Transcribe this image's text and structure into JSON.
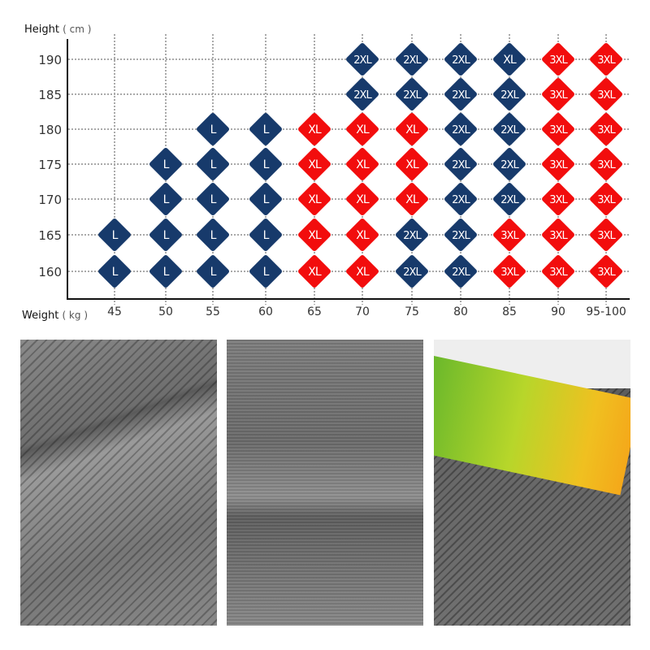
{
  "chart_data": {
    "type": "table",
    "ylabel": "Height",
    "ylabel_unit": "( cm )",
    "xlabel": "Weight",
    "xlabel_unit": "( kg )",
    "x_categories": [
      "45",
      "50",
      "55",
      "60",
      "65",
      "70",
      "75",
      "80",
      "85",
      "90",
      "95-100"
    ],
    "y_categories": [
      "190",
      "185",
      "180",
      "175",
      "170",
      "165",
      "160"
    ],
    "grid": true,
    "size_colors": {
      "L": "#173a6b",
      "XL": "#173a6b",
      "2XL": "#173a6b",
      "3XL": "#f20d0d"
    },
    "red_xl_color": "#f20d0d",
    "rows": [
      {
        "height": "190",
        "sizes": [
          null,
          null,
          null,
          null,
          null,
          "2XL",
          "2XL",
          "2XL",
          "XL",
          "3XL",
          "3XL"
        ],
        "colors": [
          null,
          null,
          null,
          null,
          null,
          "navy",
          "navy",
          "navy",
          "navy",
          "red",
          "red"
        ]
      },
      {
        "height": "185",
        "sizes": [
          null,
          null,
          null,
          null,
          null,
          "2XL",
          "2XL",
          "2XL",
          "2XL",
          "3XL",
          "3XL"
        ],
        "colors": [
          null,
          null,
          null,
          null,
          null,
          "navy",
          "navy",
          "navy",
          "navy",
          "red",
          "red"
        ]
      },
      {
        "height": "180",
        "sizes": [
          null,
          null,
          "L",
          "L",
          "XL",
          "XL",
          "XL",
          "2XL",
          "2XL",
          "3XL",
          "3XL"
        ],
        "colors": [
          null,
          null,
          "navy",
          "navy",
          "red",
          "red",
          "red",
          "navy",
          "navy",
          "red",
          "red"
        ]
      },
      {
        "height": "175",
        "sizes": [
          null,
          "L",
          "L",
          "L",
          "XL",
          "XL",
          "XL",
          "2XL",
          "2XL",
          "3XL",
          "3XL"
        ],
        "colors": [
          null,
          "navy",
          "navy",
          "navy",
          "red",
          "red",
          "red",
          "navy",
          "navy",
          "red",
          "red"
        ]
      },
      {
        "height": "170",
        "sizes": [
          null,
          "L",
          "L",
          "L",
          "XL",
          "XL",
          "XL",
          "2XL",
          "2XL",
          "3XL",
          "3XL"
        ],
        "colors": [
          null,
          "navy",
          "navy",
          "navy",
          "red",
          "red",
          "red",
          "navy",
          "navy",
          "red",
          "red"
        ]
      },
      {
        "height": "165",
        "sizes": [
          "L",
          "L",
          "L",
          "L",
          "XL",
          "XL",
          "2XL",
          "2XL",
          "3XL",
          "3XL",
          "3XL"
        ],
        "colors": [
          "navy",
          "navy",
          "navy",
          "navy",
          "red",
          "red",
          "navy",
          "navy",
          "red",
          "red",
          "red"
        ]
      },
      {
        "height": "160",
        "sizes": [
          "L",
          "L",
          "L",
          "L",
          "XL",
          "XL",
          "2XL",
          "2XL",
          "3XL",
          "3XL",
          "3XL"
        ],
        "colors": [
          "navy",
          "navy",
          "navy",
          "navy",
          "red",
          "red",
          "navy",
          "navy",
          "red",
          "red",
          "red"
        ]
      }
    ],
    "palette": {
      "navy": "#173a6b",
      "red": "#f20d0d",
      "grid": "#aaaaaa",
      "axis": "#111111"
    }
  },
  "photos": [
    "mesh-fabric-closeup",
    "seam-fabric-closeup",
    "waistband-closeup"
  ]
}
